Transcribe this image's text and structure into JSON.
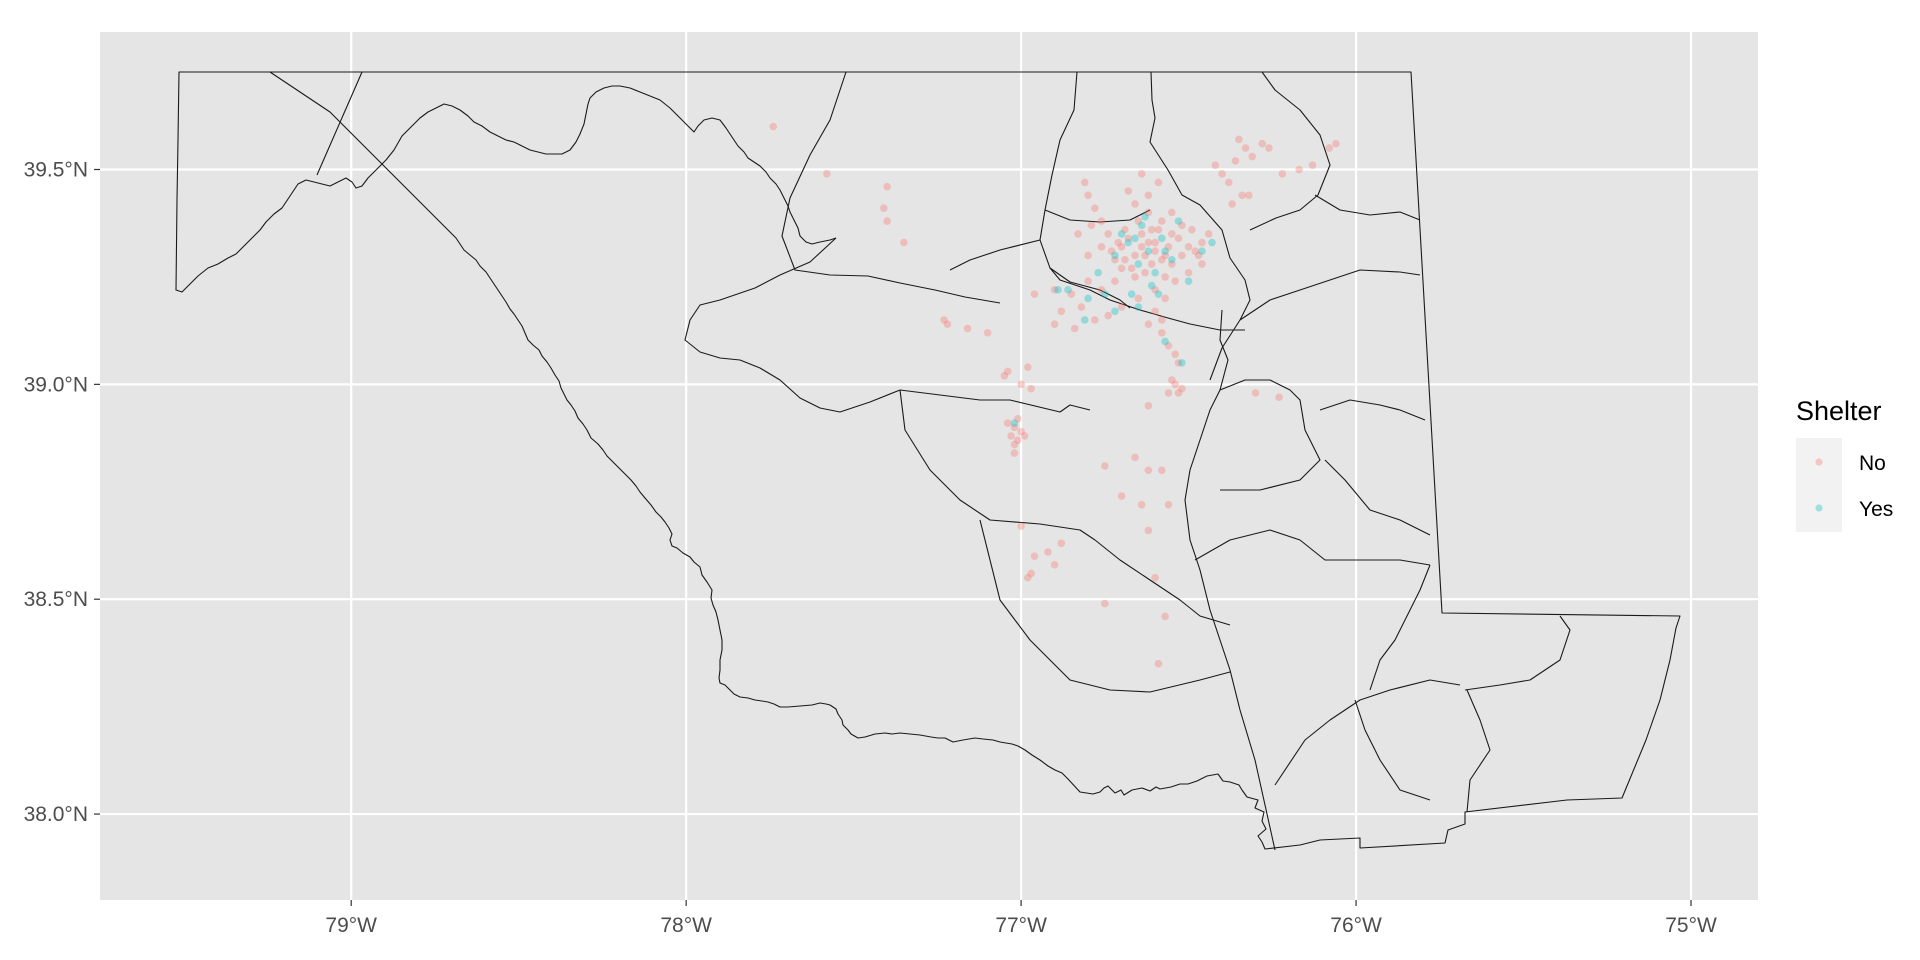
{
  "chart_data": {
    "type": "scatter",
    "xlim": [
      -79.75,
      -74.8
    ],
    "ylim": [
      37.8,
      39.82
    ],
    "x_ticks": [
      {
        "value": -79,
        "label": "79°W"
      },
      {
        "value": -78,
        "label": "78°W"
      },
      {
        "value": -77,
        "label": "77°W"
      },
      {
        "value": -76,
        "label": "76°W"
      },
      {
        "value": -75,
        "label": "75°W"
      }
    ],
    "y_ticks": [
      {
        "value": 39.5,
        "label": "39.5°N"
      },
      {
        "value": 39.0,
        "label": "39.0°N"
      },
      {
        "value": 38.5,
        "label": "38.5°N"
      },
      {
        "value": 38.0,
        "label": "38.0°N"
      }
    ],
    "legend": {
      "title": "Shelter",
      "position": "right",
      "entries": [
        {
          "label": "No",
          "color": "#F8766D"
        },
        {
          "label": "Yes",
          "color": "#00BFC4"
        }
      ]
    },
    "colors": {
      "panel": "#E5E5E5",
      "grid": "#FFFFFF",
      "boundary": "#1a1a1a",
      "No": "#F8766D",
      "Yes": "#00BFC4"
    },
    "grid": true,
    "series": [
      {
        "name": "No",
        "points": [
          [
            -76.62,
            39.33
          ],
          [
            -76.6,
            39.31
          ],
          [
            -76.64,
            39.35
          ],
          [
            -76.58,
            39.29
          ],
          [
            -76.66,
            39.3
          ],
          [
            -76.61,
            39.28
          ],
          [
            -76.56,
            39.32
          ],
          [
            -76.68,
            39.34
          ],
          [
            -76.63,
            39.26
          ],
          [
            -76.55,
            39.28
          ],
          [
            -76.7,
            39.32
          ],
          [
            -76.59,
            39.36
          ],
          [
            -76.65,
            39.38
          ],
          [
            -76.53,
            39.34
          ],
          [
            -76.72,
            39.29
          ],
          [
            -76.57,
            39.25
          ],
          [
            -76.67,
            39.27
          ],
          [
            -76.62,
            39.4
          ],
          [
            -76.52,
            39.3
          ],
          [
            -76.74,
            39.35
          ],
          [
            -76.6,
            39.22
          ],
          [
            -76.76,
            39.38
          ],
          [
            -76.78,
            39.41
          ],
          [
            -76.8,
            39.44
          ],
          [
            -76.81,
            39.47
          ],
          [
            -76.66,
            39.42
          ],
          [
            -76.68,
            39.45
          ],
          [
            -76.64,
            39.49
          ],
          [
            -76.59,
            39.47
          ],
          [
            -76.62,
            39.44
          ],
          [
            -76.55,
            39.4
          ],
          [
            -76.52,
            39.37
          ],
          [
            -76.49,
            39.36
          ],
          [
            -76.46,
            39.33
          ],
          [
            -76.44,
            39.35
          ],
          [
            -76.48,
            39.31
          ],
          [
            -76.46,
            39.28
          ],
          [
            -76.5,
            39.26
          ],
          [
            -76.54,
            39.24
          ],
          [
            -76.57,
            39.2
          ],
          [
            -76.6,
            39.17
          ],
          [
            -76.62,
            39.14
          ],
          [
            -76.58,
            39.12
          ],
          [
            -76.56,
            39.09
          ],
          [
            -76.54,
            39.07
          ],
          [
            -76.53,
            39.05
          ],
          [
            -76.58,
            39.15
          ],
          [
            -76.65,
            39.2
          ],
          [
            -76.7,
            39.18
          ],
          [
            -76.74,
            39.16
          ],
          [
            -76.78,
            39.15
          ],
          [
            -76.82,
            39.18
          ],
          [
            -76.85,
            39.21
          ],
          [
            -76.9,
            39.22
          ],
          [
            -76.88,
            39.17
          ],
          [
            -76.84,
            39.13
          ],
          [
            -76.8,
            39.24
          ],
          [
            -76.76,
            39.22
          ],
          [
            -76.72,
            39.24
          ],
          [
            -76.7,
            39.27
          ],
          [
            -76.76,
            39.32
          ],
          [
            -76.8,
            39.3
          ],
          [
            -76.83,
            39.35
          ],
          [
            -76.79,
            39.37
          ],
          [
            -76.73,
            39.31
          ],
          [
            -76.69,
            39.36
          ],
          [
            -76.6,
            39.33
          ],
          [
            -76.63,
            39.3
          ],
          [
            -76.57,
            39.3
          ],
          [
            -76.61,
            39.36
          ],
          [
            -76.55,
            39.35
          ],
          [
            -76.5,
            39.32
          ],
          [
            -76.47,
            39.3
          ],
          [
            -76.58,
            39.38
          ],
          [
            -76.64,
            39.32
          ],
          [
            -76.66,
            39.25
          ],
          [
            -76.69,
            39.29
          ],
          [
            -76.71,
            39.33
          ],
          [
            -76.54,
            39.0
          ],
          [
            -76.52,
            38.99
          ],
          [
            -76.56,
            38.98
          ],
          [
            -76.53,
            38.98
          ],
          [
            -76.55,
            39.01
          ],
          [
            -77.02,
            38.9
          ],
          [
            -77.03,
            38.88
          ],
          [
            -77.01,
            38.87
          ],
          [
            -77.0,
            38.89
          ],
          [
            -77.04,
            38.91
          ],
          [
            -77.02,
            38.86
          ],
          [
            -76.99,
            38.88
          ],
          [
            -77.01,
            38.92
          ],
          [
            -77.04,
            39.03
          ],
          [
            -77.05,
            39.02
          ],
          [
            -77.0,
            39.0
          ],
          [
            -76.98,
            39.04
          ],
          [
            -77.1,
            39.12
          ],
          [
            -77.22,
            39.14
          ],
          [
            -77.16,
            39.13
          ],
          [
            -76.96,
            39.21
          ],
          [
            -76.9,
            39.14
          ],
          [
            -76.97,
            38.99
          ],
          [
            -77.02,
            38.84
          ],
          [
            -77.0,
            38.67
          ],
          [
            -76.96,
            38.6
          ],
          [
            -76.92,
            38.61
          ],
          [
            -76.9,
            38.58
          ],
          [
            -76.88,
            38.63
          ],
          [
            -76.97,
            38.56
          ],
          [
            -76.98,
            38.55
          ],
          [
            -76.75,
            38.49
          ],
          [
            -76.6,
            38.55
          ],
          [
            -76.62,
            38.66
          ],
          [
            -76.64,
            38.72
          ],
          [
            -76.7,
            38.74
          ],
          [
            -76.56,
            38.72
          ],
          [
            -76.58,
            38.8
          ],
          [
            -76.62,
            38.8
          ],
          [
            -76.66,
            38.83
          ],
          [
            -76.75,
            38.81
          ],
          [
            -76.57,
            38.46
          ],
          [
            -76.59,
            38.35
          ],
          [
            -76.62,
            38.95
          ],
          [
            -76.3,
            38.98
          ],
          [
            -76.23,
            38.97
          ],
          [
            -77.74,
            39.6
          ],
          [
            -77.58,
            39.49
          ],
          [
            -77.4,
            39.46
          ],
          [
            -77.41,
            39.41
          ],
          [
            -77.4,
            39.38
          ],
          [
            -77.35,
            39.33
          ],
          [
            -77.23,
            39.15
          ],
          [
            -76.36,
            39.52
          ],
          [
            -76.33,
            39.55
          ],
          [
            -76.31,
            39.53
          ],
          [
            -76.26,
            39.55
          ],
          [
            -76.22,
            39.49
          ],
          [
            -76.17,
            39.5
          ],
          [
            -76.13,
            39.51
          ],
          [
            -76.08,
            39.55
          ],
          [
            -76.06,
            39.56
          ],
          [
            -76.34,
            39.44
          ],
          [
            -76.32,
            39.44
          ],
          [
            -76.4,
            39.49
          ],
          [
            -76.38,
            39.47
          ],
          [
            -76.37,
            39.42
          ],
          [
            -76.42,
            39.51
          ],
          [
            -76.35,
            39.57
          ],
          [
            -76.28,
            39.56
          ]
        ]
      },
      {
        "name": "Yes",
        "points": [
          [
            -76.68,
            39.33
          ],
          [
            -76.62,
            39.31
          ],
          [
            -76.58,
            39.34
          ],
          [
            -76.65,
            39.28
          ],
          [
            -76.6,
            39.26
          ],
          [
            -76.55,
            39.29
          ],
          [
            -76.7,
            39.35
          ],
          [
            -76.64,
            39.37
          ],
          [
            -76.57,
            39.31
          ],
          [
            -76.66,
            39.34
          ],
          [
            -76.72,
            39.3
          ],
          [
            -76.61,
            39.23
          ],
          [
            -76.67,
            39.21
          ],
          [
            -76.75,
            39.21
          ],
          [
            -76.89,
            39.22
          ],
          [
            -76.86,
            39.22
          ],
          [
            -76.8,
            39.2
          ],
          [
            -76.72,
            39.17
          ],
          [
            -76.65,
            39.18
          ],
          [
            -76.5,
            39.24
          ],
          [
            -76.46,
            39.31
          ],
          [
            -76.43,
            39.33
          ],
          [
            -76.52,
            39.05
          ],
          [
            -76.57,
            39.1
          ],
          [
            -76.81,
            39.15
          ],
          [
            -77.02,
            38.91
          ],
          [
            -76.59,
            39.21
          ],
          [
            -76.63,
            39.39
          ],
          [
            -76.53,
            39.38
          ],
          [
            -76.77,
            39.26
          ]
        ]
      }
    ]
  }
}
